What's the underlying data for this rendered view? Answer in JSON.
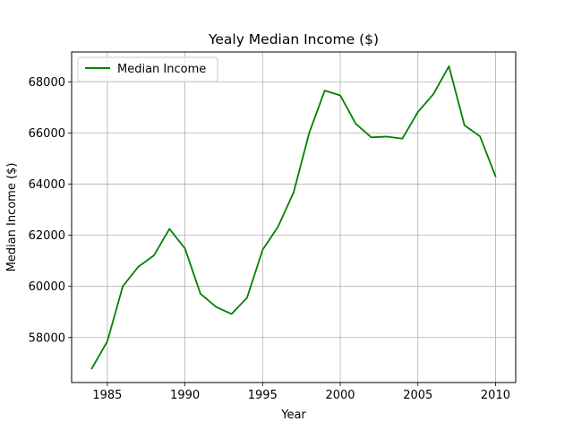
{
  "chart_data": {
    "type": "line",
    "title": "Yealy Median Income ($)",
    "xlabel": "Year",
    "ylabel": "Median Income ($)",
    "xlim": [
      1982.7,
      2011.3
    ],
    "ylim": [
      56240,
      69170
    ],
    "x_ticks": [
      1985,
      1990,
      1995,
      2000,
      2005,
      2010
    ],
    "y_ticks": [
      58000,
      60000,
      62000,
      64000,
      66000,
      68000
    ],
    "x_tick_labels": [
      "1985",
      "1990",
      "1995",
      "2000",
      "2005",
      "2010"
    ],
    "y_tick_labels": [
      "58000",
      "60000",
      "62000",
      "64000",
      "66000",
      "68000"
    ],
    "grid": true,
    "legend_position": "top-left",
    "series": [
      {
        "name": "Median Income",
        "color": "#008000",
        "x": [
          1984,
          1985,
          1986,
          1987,
          1988,
          1989,
          1990,
          1991,
          1992,
          1993,
          1994,
          1995,
          1996,
          1997,
          1998,
          1999,
          2000,
          2001,
          2002,
          2003,
          2004,
          2005,
          2006,
          2007,
          2008,
          2009,
          2010
        ],
        "y": [
          56790,
          57850,
          60010,
          60770,
          61210,
          62250,
          61480,
          59710,
          59200,
          58920,
          59560,
          61430,
          62340,
          63680,
          66000,
          67660,
          67470,
          66360,
          65830,
          65860,
          65780,
          66820,
          67520,
          68610,
          66300,
          65870,
          64310
        ]
      }
    ]
  }
}
